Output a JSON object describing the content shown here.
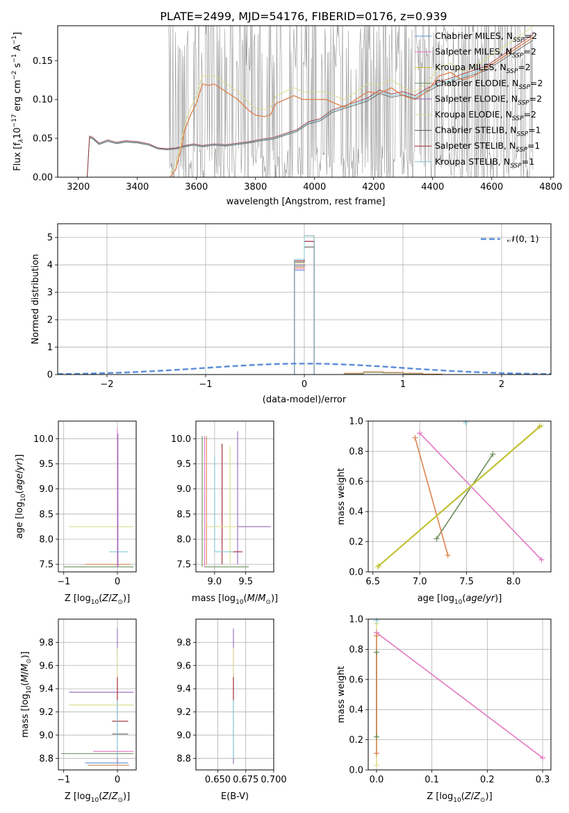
{
  "chart_data": [
    {
      "id": "spectrum",
      "type": "line",
      "title": "PLATE=2499, MJD=54176, FIBERID=0176, z=0.939",
      "xlabel": "wavelength [Angstrom, rest frame]",
      "ylabel": "Flux [f_λ 10^-17 erg cm^-2 s^-1 A^-1]",
      "xlim": [
        3130,
        4810
      ],
      "ylim": [
        0,
        0.195
      ],
      "xticks": [
        "3200",
        "3400",
        "3600",
        "3800",
        "4000",
        "4200",
        "4400",
        "4600",
        "4800"
      ],
      "yticks": [
        "0.00",
        "0.05",
        "0.10",
        "0.15"
      ],
      "grid": false,
      "legend_position": "top-right",
      "series": [
        {
          "name": "Chabrier MILES, N_SSP=2",
          "color": "#5b8dd6"
        },
        {
          "name": "Salpeter MILES, N_SSP=2",
          "color": "#e377c2"
        },
        {
          "name": "Kroupa MILES, N_SSP=2",
          "color": "#bcbd22"
        },
        {
          "name": "Chabrier ELODIE, N_SSP=2",
          "color": "#6b8e5a"
        },
        {
          "name": "Salpeter ELODIE, N_SSP=2",
          "color": "#9467bd"
        },
        {
          "name": "Kroupa ELODIE, N_SSP=2",
          "color": "#dbdb8d"
        },
        {
          "name": "Chabrier STELIB, N_SSP=1",
          "color": "#555555"
        },
        {
          "name": "Salpeter STELIB, N_SSP=1",
          "color": "#a0262d"
        },
        {
          "name": "Kroupa STELIB, N_SSP=1",
          "color": "#7fc8d6"
        }
      ],
      "data_trace": {
        "name": "",
        "color": "#808080"
      },
      "model_blue": {
        "x": [
          3230,
          3238,
          3250,
          3270,
          3300,
          3330,
          3360,
          3400,
          3440,
          3470,
          3500,
          3530,
          3560,
          3590,
          3620,
          3660,
          3700,
          3740,
          3780,
          3820,
          3860,
          3900,
          3940,
          3980,
          4020,
          4060,
          4100,
          4140,
          4180,
          4220,
          4260,
          4300,
          4340,
          4380,
          4420,
          4460,
          4500,
          4540,
          4580,
          4620,
          4660,
          4700,
          4740
        ],
        "y": [
          0.0,
          0.052,
          0.05,
          0.043,
          0.047,
          0.044,
          0.046,
          0.045,
          0.042,
          0.037,
          0.036,
          0.037,
          0.04,
          0.042,
          0.04,
          0.042,
          0.041,
          0.043,
          0.045,
          0.048,
          0.05,
          0.055,
          0.06,
          0.07,
          0.074,
          0.085,
          0.09,
          0.095,
          0.1,
          0.11,
          0.105,
          0.108,
          0.103,
          0.112,
          0.12,
          0.125,
          0.13,
          0.135,
          0.14,
          0.15,
          0.16,
          0.17,
          0.18
        ]
      },
      "model_orange": {
        "x": [
          3510,
          3530,
          3550,
          3560,
          3580,
          3600,
          3620,
          3640,
          3660,
          3700,
          3740,
          3780,
          3800,
          3830,
          3850,
          3870,
          3900,
          3930,
          3960,
          4000,
          4040,
          4070,
          4100,
          4140,
          4180,
          4220,
          4260,
          4300,
          4340,
          4380,
          4420,
          4460,
          4500,
          4540,
          4580,
          4620,
          4660,
          4700,
          4740
        ],
        "y": [
          0.0,
          0.01,
          0.04,
          0.06,
          0.08,
          0.095,
          0.12,
          0.118,
          0.12,
          0.11,
          0.1,
          0.085,
          0.08,
          0.078,
          0.08,
          0.095,
          0.1,
          0.105,
          0.1,
          0.1,
          0.1,
          0.095,
          0.09,
          0.1,
          0.11,
          0.108,
          0.115,
          0.105,
          0.1,
          0.11,
          0.13,
          0.135,
          0.125,
          0.13,
          0.14,
          0.15,
          0.16,
          0.17,
          0.18
        ]
      }
    },
    {
      "id": "residuals",
      "type": "bar",
      "xlabel": "(data-model)/error",
      "ylabel": "Normed distribution",
      "xlim": [
        -2.5,
        2.5
      ],
      "ylim": [
        0,
        5.5
      ],
      "xticks": [
        -2,
        -1,
        0,
        1,
        2
      ],
      "yticks": [
        0,
        1,
        2,
        3,
        4,
        5
      ],
      "grid": true,
      "legend": "𝒩(0, 1)",
      "legend_position": "top-right",
      "bins": [
        -0.1,
        0.0,
        0.1
      ],
      "heights_min": [
        3.8,
        4.65
      ],
      "heights_max": [
        4.2,
        5.2
      ],
      "tail_bins": [
        0.4,
        0.6,
        0.8,
        1.0,
        1.2
      ],
      "tail_heights": [
        0.05,
        0.1,
        0.08,
        0.05,
        0.02
      ],
      "normal_curve": {
        "mean": 0,
        "sigma": 1,
        "color": "#5b8dd6"
      }
    },
    {
      "id": "age-vs-Z",
      "type": "scatter",
      "xlabel": "Z [log10(Z/Z⊙)]",
      "ylabel": "age  [log10(age/yr)]",
      "xlim": [
        -1.1,
        0.35
      ],
      "ylim": [
        7.35,
        10.35
      ],
      "xticks": [
        -1,
        0
      ],
      "yticks": [
        "7.5",
        "8.0",
        "8.5",
        "9.0",
        "9.5",
        "10.0"
      ],
      "grid": true,
      "segments": [
        {
          "x": [
            -1.0,
            0.3
          ],
          "y": 7.45,
          "color": "#6b8e5a"
        },
        {
          "x": [
            -0.6,
            0.25
          ],
          "y": 7.5,
          "color": "#dd8452"
        },
        {
          "x": [
            -0.9,
            0.3
          ],
          "y": 8.25,
          "color": "#dbdb8d"
        },
        {
          "x": [
            -0.15,
            0.2
          ],
          "y": 7.75,
          "color": "#7fc8d6"
        },
        {
          "x": [
            0.0,
            0.0
          ],
          "y": [
            7.45,
            10.2
          ],
          "color": "#e377c2"
        },
        {
          "x": [
            0.01,
            0.01
          ],
          "y": [
            7.45,
            10.1
          ],
          "color": "#9467bd"
        }
      ]
    },
    {
      "id": "age-vs-mass",
      "type": "scatter",
      "xlabel": "mass [log10(M/M⊙)]",
      "ylabel": "",
      "xlim": [
        8.7,
        9.95
      ],
      "ylim": [
        7.35,
        10.35
      ],
      "xticks": [
        "9.0",
        "9.5"
      ],
      "yticks": [
        "7.5",
        "8.0",
        "8.5",
        "9.0",
        "9.5",
        "10.0"
      ],
      "grid": true,
      "segments": [
        {
          "x": 8.8,
          "y": [
            7.45,
            10.05
          ],
          "color": "#6b8e5a"
        },
        {
          "x": 8.84,
          "y": [
            7.45,
            10.05
          ],
          "color": "#e377c2"
        },
        {
          "x": 8.87,
          "y": [
            7.5,
            10.05
          ],
          "color": "#dd8452"
        },
        {
          "x": 9.0,
          "y": [
            7.75,
            9.65
          ],
          "color": "#7fc8d6"
        },
        {
          "x": 9.12,
          "y": [
            7.5,
            9.9
          ],
          "color": "#a0262d"
        },
        {
          "x": 9.25,
          "y": [
            7.5,
            9.85
          ],
          "color": "#dbdb8d"
        },
        {
          "x": 9.37,
          "y": [
            7.5,
            10.15
          ],
          "color": "#9467bd"
        },
        {
          "x": [
            8.84,
            9.55
          ],
          "y": 7.45,
          "color": "#6b8e5a"
        },
        {
          "x": [
            8.84,
            9.8
          ],
          "y": 8.25,
          "color": "#dbdb8d"
        },
        {
          "x": [
            9.37,
            9.9
          ],
          "y": 8.25,
          "color": "#9467bd"
        },
        {
          "x": [
            9.0,
            9.3
          ],
          "y": 7.75,
          "color": "#7fc8d6"
        },
        {
          "x": [
            9.3,
            9.45
          ],
          "y": 7.75,
          "color": "#a0262d"
        }
      ]
    },
    {
      "id": "weight-vs-age",
      "type": "line",
      "xlabel": "age  [log10(age/yr)]",
      "ylabel": "mass weight",
      "xlim": [
        6.45,
        8.4
      ],
      "ylim": [
        0,
        1
      ],
      "xticks": [
        "6.5",
        "7.0",
        "7.5",
        "8.0"
      ],
      "yticks": [
        "0.0",
        "0.2",
        "0.4",
        "0.6",
        "0.8",
        "1.0"
      ],
      "grid": true,
      "series": [
        {
          "color": "#e377c2",
          "x": [
            7.0,
            8.3
          ],
          "y": [
            0.92,
            0.08
          ]
        },
        {
          "color": "#6b8e5a",
          "x": [
            7.18,
            7.78
          ],
          "y": [
            0.22,
            0.78
          ]
        },
        {
          "color": "#dd8452",
          "x": [
            6.95,
            7.3
          ],
          "y": [
            0.89,
            0.11
          ]
        },
        {
          "color": "#dbdb8d",
          "x": [
            6.55,
            8.3
          ],
          "y": [
            0.03,
            0.97
          ]
        },
        {
          "color": "#bcbd22",
          "x": [
            6.56,
            8.28
          ],
          "y": [
            0.04,
            0.965
          ]
        },
        {
          "color": "#7fc8d6",
          "x": [
            7.49
          ],
          "y": [
            0.99
          ]
        }
      ]
    },
    {
      "id": "mass-vs-Z",
      "type": "scatter",
      "xlabel": "Z [log10(Z/Z⊙)]",
      "ylabel": "mass [log10(M/M⊙)]",
      "xlim": [
        -1.1,
        0.35
      ],
      "ylim": [
        8.7,
        10.0
      ],
      "xticks": [
        -1,
        0
      ],
      "yticks": [
        "8.8",
        "9.0",
        "9.2",
        "9.4",
        "9.6",
        "9.8"
      ],
      "grid": true,
      "segments": [
        {
          "x": [
            -0.9,
            0.3
          ],
          "y": 9.37,
          "color": "#9467bd"
        },
        {
          "x": [
            -0.9,
            0.3
          ],
          "y": 9.26,
          "color": "#dbdb8d"
        },
        {
          "x": [
            -0.1,
            0.2
          ],
          "y": 9.12,
          "color": "#a0262d"
        },
        {
          "x": [
            -0.1,
            0.2
          ],
          "y": 9.01,
          "color": "#555555"
        },
        {
          "x": [
            -0.45,
            0.3
          ],
          "y": 8.86,
          "color": "#e377c2"
        },
        {
          "x": [
            -1.05,
            0.3
          ],
          "y": 8.84,
          "color": "#6b8e5a"
        },
        {
          "x": [
            -0.6,
            0.2
          ],
          "y": 8.76,
          "color": "#5b8dd6"
        },
        {
          "x": [
            -0.55,
            0.22
          ],
          "y": 8.74,
          "color": "#dd8452"
        },
        {
          "x": 0.0,
          "y": [
            8.75,
            9.92
          ],
          "color": "#9467bd"
        },
        {
          "x": 0.0,
          "y": [
            9.3,
            9.75
          ],
          "color": "#dbdb8d"
        },
        {
          "x": 0.0,
          "y": [
            9.1,
            9.5
          ],
          "color": "#a0262d"
        },
        {
          "x": 0.0,
          "y": [
            8.8,
            9.3
          ],
          "color": "#7fc8d6"
        }
      ]
    },
    {
      "id": "mass-vs-ebv",
      "type": "scatter",
      "xlabel": "E(B-V)",
      "ylabel": "",
      "xlim": [
        0.6305,
        0.7
      ],
      "ylim": [
        8.7,
        10.0
      ],
      "xticks": [
        "0.650",
        "0.675",
        "0.700"
      ],
      "yticks": [
        "8.8",
        "9.0",
        "9.2",
        "9.4",
        "9.6",
        "9.8"
      ],
      "grid": true,
      "segments": [
        {
          "x": 0.664,
          "y": [
            8.75,
            9.92
          ],
          "color": "#9467bd"
        },
        {
          "x": 0.664,
          "y": [
            8.8,
            9.75
          ],
          "color": "#dbdb8d"
        },
        {
          "x": 0.664,
          "y": [
            9.3,
            9.5
          ],
          "color": "#a0262d"
        },
        {
          "x": 0.664,
          "y": [
            8.8,
            9.3
          ],
          "color": "#7fc8d6"
        }
      ]
    },
    {
      "id": "weight-vs-Z",
      "type": "line",
      "xlabel": "Z [log10(Z/Z⊙)]",
      "ylabel": "mass weight",
      "xlim": [
        -0.015,
        0.315
      ],
      "ylim": [
        0,
        1
      ],
      "xticks": [
        "0.0",
        "0.1",
        "0.2",
        "0.3"
      ],
      "yticks": [
        "0.0",
        "0.2",
        "0.4",
        "0.6",
        "0.8",
        "1.0"
      ],
      "grid": true,
      "series": [
        {
          "color": "#e377c2",
          "x": [
            0.0,
            0.3
          ],
          "y": [
            0.91,
            0.08
          ]
        },
        {
          "color": "#dbdb8d",
          "x": [
            0.0,
            0.0
          ],
          "y": [
            0.03,
            0.97
          ]
        },
        {
          "color": "#6b8e5a",
          "x": [
            0.0,
            0.0
          ],
          "y": [
            0.22,
            0.78
          ]
        },
        {
          "color": "#dd8452",
          "x": [
            0.0,
            0.0
          ],
          "y": [
            0.11,
            0.89
          ]
        },
        {
          "color": "#7fc8d6",
          "x": [
            0.0
          ],
          "y": [
            0.99
          ]
        }
      ]
    }
  ]
}
